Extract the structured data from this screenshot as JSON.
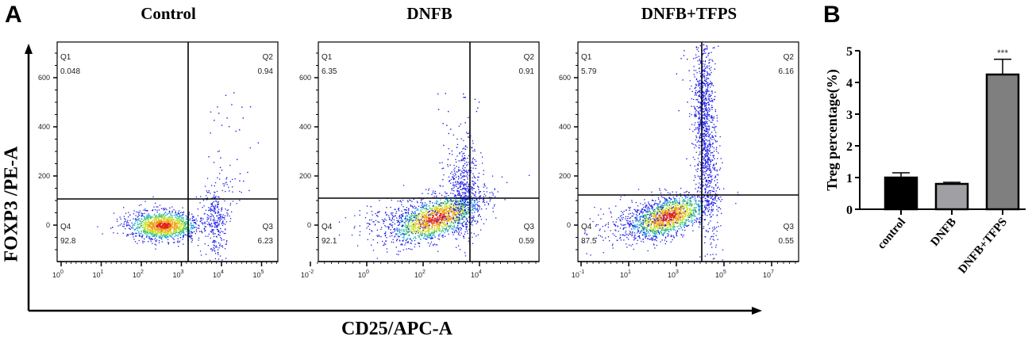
{
  "panel_a": {
    "letter": "A",
    "y_axis_label": "FOXP3 /PE-A",
    "x_axis_label": "CD25/APC-A"
  },
  "panel_b": {
    "letter": "B"
  },
  "chart_data": [
    {
      "type": "scatter",
      "title": "Control",
      "xlabel": "CD25/APC-A",
      "ylabel": "FOXP3 /PE-A",
      "x_scale": "log",
      "x_tick_labels": [
        "10^0",
        "10^1",
        "10^2",
        "10^3",
        "10^4",
        "10^5"
      ],
      "y_tick_labels": [
        "0",
        "200",
        "400",
        "600"
      ],
      "quadrants": {
        "Q1": "0.048",
        "Q2": "0.94",
        "Q3": "6.23",
        "Q4": "92.8"
      }
    },
    {
      "type": "scatter",
      "title": "DNFB",
      "xlabel": "CD25/APC-A",
      "ylabel": "FOXP3 /PE-A",
      "x_scale": "log",
      "x_tick_labels": [
        "10^-2",
        "10^0",
        "10^2",
        "10^4"
      ],
      "y_tick_labels": [
        "0",
        "200",
        "400",
        "600"
      ],
      "quadrants": {
        "Q1": "6.35",
        "Q2": "0.91",
        "Q3": "0.59",
        "Q4": "92.1"
      }
    },
    {
      "type": "scatter",
      "title": "DNFB+TFPS",
      "xlabel": "CD25/APC-A",
      "ylabel": "FOXP3 /PE-A",
      "x_scale": "log",
      "x_tick_labels": [
        "10^-1",
        "10^1",
        "10^3",
        "10^5",
        "10^7"
      ],
      "y_tick_labels": [
        "0",
        "200",
        "400",
        "600"
      ],
      "quadrants": {
        "Q1": "5.79",
        "Q2": "6.16",
        "Q3": "0.55",
        "Q4": "87.5"
      }
    },
    {
      "type": "bar",
      "title": "",
      "categories": [
        "control",
        "DNFB",
        "DNFB+TFPS"
      ],
      "values": [
        1.0,
        0.8,
        4.25
      ],
      "errors": [
        0.15,
        0.05,
        0.48
      ],
      "colors": [
        "#000000",
        "#a0a0a4",
        "#7f7f7f"
      ],
      "annotations": [
        "",
        "",
        "***"
      ],
      "xlabel": "",
      "ylabel": "Treg percentage(%)",
      "ylim": [
        0,
        5
      ],
      "y_ticks": [
        "0",
        "1",
        "2",
        "3",
        "4",
        "5"
      ]
    }
  ]
}
